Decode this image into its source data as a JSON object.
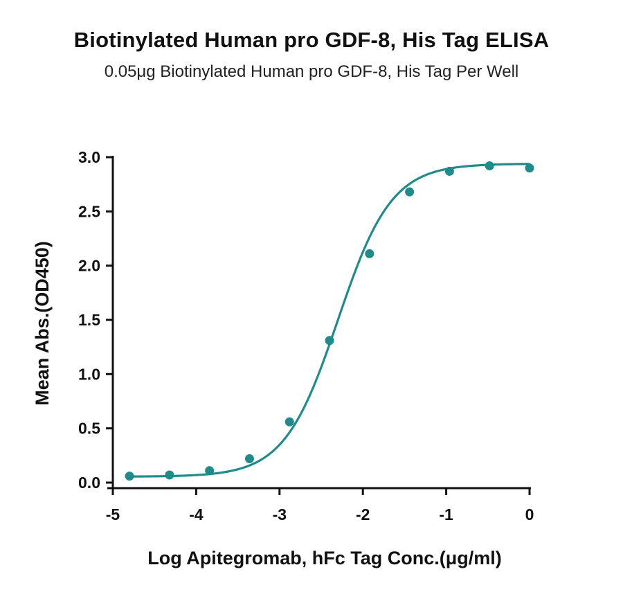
{
  "title": "Biotinylated Human pro GDF-8, His Tag ELISA",
  "subtitle": "0.05μg Biotinylated Human pro GDF-8, His Tag Per Well",
  "colors": {
    "series": "#1f8b8b",
    "axis": "#111111"
  },
  "chart_data": {
    "type": "scatter",
    "xlabel": "Log Apitegromab, hFc Tag Conc.(μg/ml)",
    "ylabel": "Mean Abs.(OD450)",
    "xlim": [
      -5,
      0
    ],
    "ylim": [
      0,
      3.0
    ],
    "xticks": [
      -5,
      -4,
      -3,
      -2,
      -1,
      0
    ],
    "xtick_labels": [
      "-5",
      "-4",
      "-3",
      "-2",
      "-1",
      "0"
    ],
    "yticks": [
      0,
      0.5,
      1.0,
      1.5,
      2.0,
      2.5,
      3.0
    ],
    "ytick_labels": [
      "0.0",
      "0.5",
      "1.0",
      "1.5",
      "2.0",
      "2.5",
      "3.0"
    ],
    "grid": false,
    "series": [
      {
        "x": [
          -4.8,
          -4.32,
          -3.84,
          -3.36,
          -2.88,
          -2.4,
          -1.92,
          -1.44,
          -0.96,
          -0.48,
          0.0
        ],
        "y": [
          0.06,
          0.07,
          0.11,
          0.22,
          0.56,
          1.31,
          2.11,
          2.68,
          2.87,
          2.92,
          2.9
        ],
        "fit": "4PL sigmoid",
        "fit_params": {
          "bottom": 0.055,
          "top": 2.94,
          "logEC50": -2.3,
          "hill": 1.35
        }
      }
    ]
  }
}
